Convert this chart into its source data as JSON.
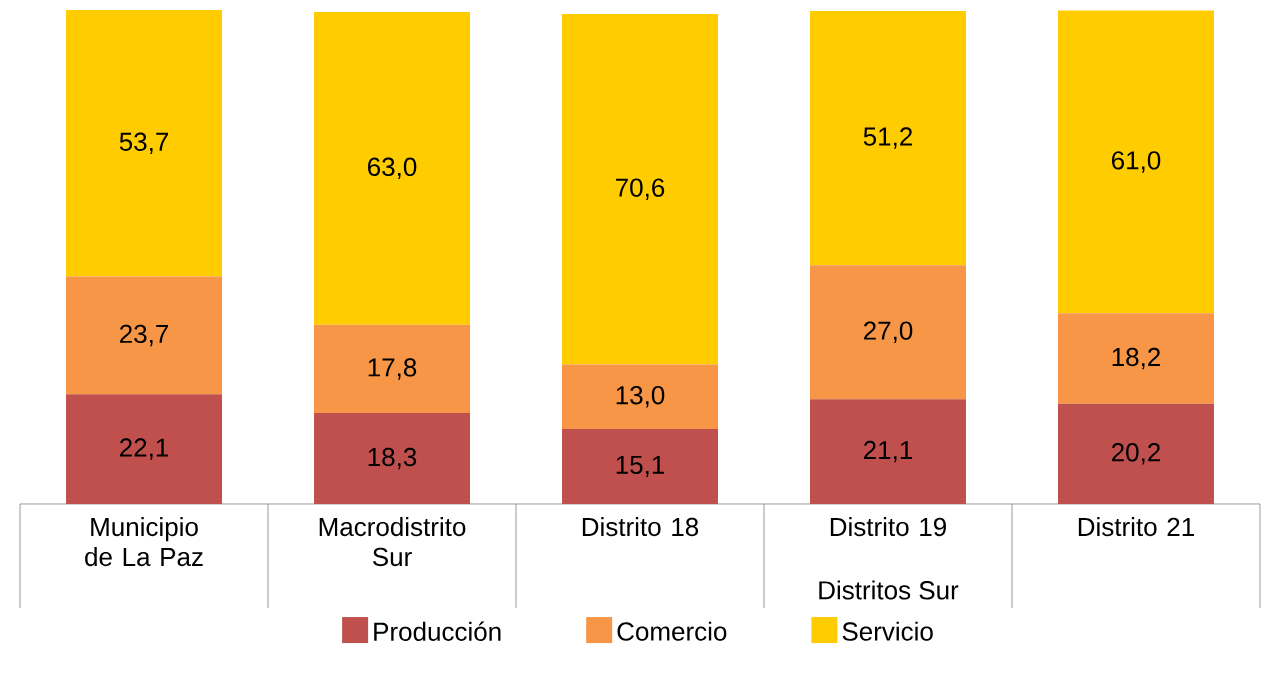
{
  "chart_data": {
    "type": "bar",
    "stacked": true,
    "categories": [
      "Municipio de La Paz",
      "Macrodistrito Sur",
      "Distrito 18",
      "Distrito 19",
      "Distrito 21"
    ],
    "series": [
      {
        "name": "Producción",
        "color": "#c0504d",
        "values": [
          22.1,
          18.3,
          15.1,
          21.1,
          20.2
        ],
        "value_labels": [
          "22,1",
          "18,3",
          "15,1",
          "21,1",
          "20,2"
        ]
      },
      {
        "name": "Comercio",
        "color": "#f79646",
        "values": [
          23.7,
          17.8,
          13.0,
          27.0,
          18.2
        ],
        "value_labels": [
          "23,7",
          "17,8",
          "13,0",
          "27,0",
          "18,2"
        ]
      },
      {
        "name": "Servicio",
        "color": "#ffcc00",
        "values": [
          53.7,
          63.0,
          70.6,
          51.2,
          61.0
        ],
        "value_labels": [
          "53,7",
          "63,0",
          "70,6",
          "51,2",
          "61,0"
        ]
      }
    ],
    "legend": "bottom",
    "annotations": [
      "Distritos Sur"
    ]
  }
}
